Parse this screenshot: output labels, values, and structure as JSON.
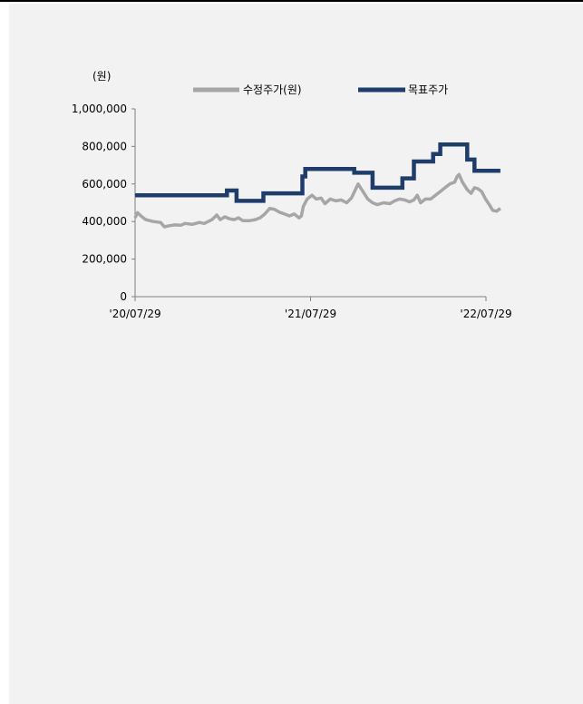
{
  "chart_data": {
    "type": "line",
    "y_unit_label": "(원)",
    "ylim": [
      0,
      1000000
    ],
    "y_ticks": [
      0,
      200000,
      400000,
      600000,
      800000,
      1000000
    ],
    "y_tick_labels": [
      "0",
      "200,000",
      "400,000",
      "600,000",
      "800,000",
      "1,000,000"
    ],
    "xlim": [
      "2020-07-29",
      "2022-07-29"
    ],
    "x_ticks": [
      "2020-07-29",
      "2021-07-29",
      "2022-07-29"
    ],
    "x_tick_labels": [
      "'20/07/29",
      "'21/07/29",
      "'22/07/29"
    ],
    "legend_position": "top",
    "grid": false,
    "series": [
      {
        "name": "수정주가(원)",
        "color": "#a6a6a6",
        "step": false,
        "points": [
          [
            "2020-07-29",
            420000
          ],
          [
            "2020-08-03",
            448000
          ],
          [
            "2020-08-10",
            430000
          ],
          [
            "2020-08-20",
            410000
          ],
          [
            "2020-09-05",
            400000
          ],
          [
            "2020-09-20",
            395000
          ],
          [
            "2020-09-28",
            372000
          ],
          [
            "2020-10-08",
            378000
          ],
          [
            "2020-10-20",
            382000
          ],
          [
            "2020-11-01",
            380000
          ],
          [
            "2020-11-10",
            390000
          ],
          [
            "2020-11-25",
            385000
          ],
          [
            "2020-12-10",
            395000
          ],
          [
            "2020-12-20",
            390000
          ],
          [
            "2021-01-05",
            410000
          ],
          [
            "2021-01-15",
            435000
          ],
          [
            "2021-01-22",
            410000
          ],
          [
            "2021-02-01",
            425000
          ],
          [
            "2021-02-10",
            415000
          ],
          [
            "2021-02-20",
            410000
          ],
          [
            "2021-03-01",
            420000
          ],
          [
            "2021-03-10",
            405000
          ],
          [
            "2021-03-25",
            405000
          ],
          [
            "2021-04-05",
            410000
          ],
          [
            "2021-04-15",
            420000
          ],
          [
            "2021-04-25",
            440000
          ],
          [
            "2021-05-05",
            470000
          ],
          [
            "2021-05-15",
            465000
          ],
          [
            "2021-05-25",
            450000
          ],
          [
            "2021-06-05",
            440000
          ],
          [
            "2021-06-15",
            430000
          ],
          [
            "2021-06-25",
            440000
          ],
          [
            "2021-07-05",
            420000
          ],
          [
            "2021-07-10",
            430000
          ],
          [
            "2021-07-14",
            480000
          ],
          [
            "2021-07-22",
            520000
          ],
          [
            "2021-08-01",
            540000
          ],
          [
            "2021-08-10",
            520000
          ],
          [
            "2021-08-20",
            525000
          ],
          [
            "2021-08-28",
            495000
          ],
          [
            "2021-09-08",
            520000
          ],
          [
            "2021-09-20",
            510000
          ],
          [
            "2021-10-01",
            515000
          ],
          [
            "2021-10-12",
            500000
          ],
          [
            "2021-10-22",
            525000
          ],
          [
            "2021-11-05",
            600000
          ],
          [
            "2021-11-15",
            560000
          ],
          [
            "2021-11-25",
            520000
          ],
          [
            "2021-12-05",
            500000
          ],
          [
            "2021-12-15",
            490000
          ],
          [
            "2021-12-28",
            500000
          ],
          [
            "2022-01-10",
            495000
          ],
          [
            "2022-01-20",
            510000
          ],
          [
            "2022-01-30",
            520000
          ],
          [
            "2022-02-10",
            515000
          ],
          [
            "2022-02-20",
            505000
          ],
          [
            "2022-03-01",
            515000
          ],
          [
            "2022-03-08",
            540000
          ],
          [
            "2022-03-15",
            500000
          ],
          [
            "2022-03-25",
            520000
          ],
          [
            "2022-04-05",
            520000
          ],
          [
            "2022-04-15",
            540000
          ],
          [
            "2022-04-25",
            560000
          ],
          [
            "2022-05-05",
            580000
          ],
          [
            "2022-05-15",
            600000
          ],
          [
            "2022-05-25",
            610000
          ],
          [
            "2022-05-30",
            640000
          ],
          [
            "2022-06-03",
            650000
          ],
          [
            "2022-06-10",
            610000
          ],
          [
            "2022-06-20",
            570000
          ],
          [
            "2022-06-28",
            550000
          ],
          [
            "2022-07-05",
            580000
          ],
          [
            "2022-07-12",
            575000
          ],
          [
            "2022-07-20",
            560000
          ],
          [
            "2022-07-28",
            520000
          ],
          [
            "2022-08-05",
            490000
          ],
          [
            "2022-08-12",
            460000
          ],
          [
            "2022-08-20",
            455000
          ],
          [
            "2022-08-28",
            470000
          ]
        ]
      },
      {
        "name": "목표주가",
        "color": "#1f3d6b",
        "step": true,
        "points": [
          [
            "2020-07-29",
            540000
          ],
          [
            "2021-02-05",
            565000
          ],
          [
            "2021-02-25",
            510000
          ],
          [
            "2021-04-22",
            550000
          ],
          [
            "2021-07-12",
            640000
          ],
          [
            "2021-07-18",
            680000
          ],
          [
            "2021-10-28",
            660000
          ],
          [
            "2021-12-05",
            580000
          ],
          [
            "2022-02-05",
            630000
          ],
          [
            "2022-03-01",
            720000
          ],
          [
            "2022-04-10",
            760000
          ],
          [
            "2022-04-25",
            810000
          ],
          [
            "2022-06-20",
            730000
          ],
          [
            "2022-07-05",
            670000
          ],
          [
            "2022-08-28",
            670000
          ]
        ]
      }
    ]
  }
}
